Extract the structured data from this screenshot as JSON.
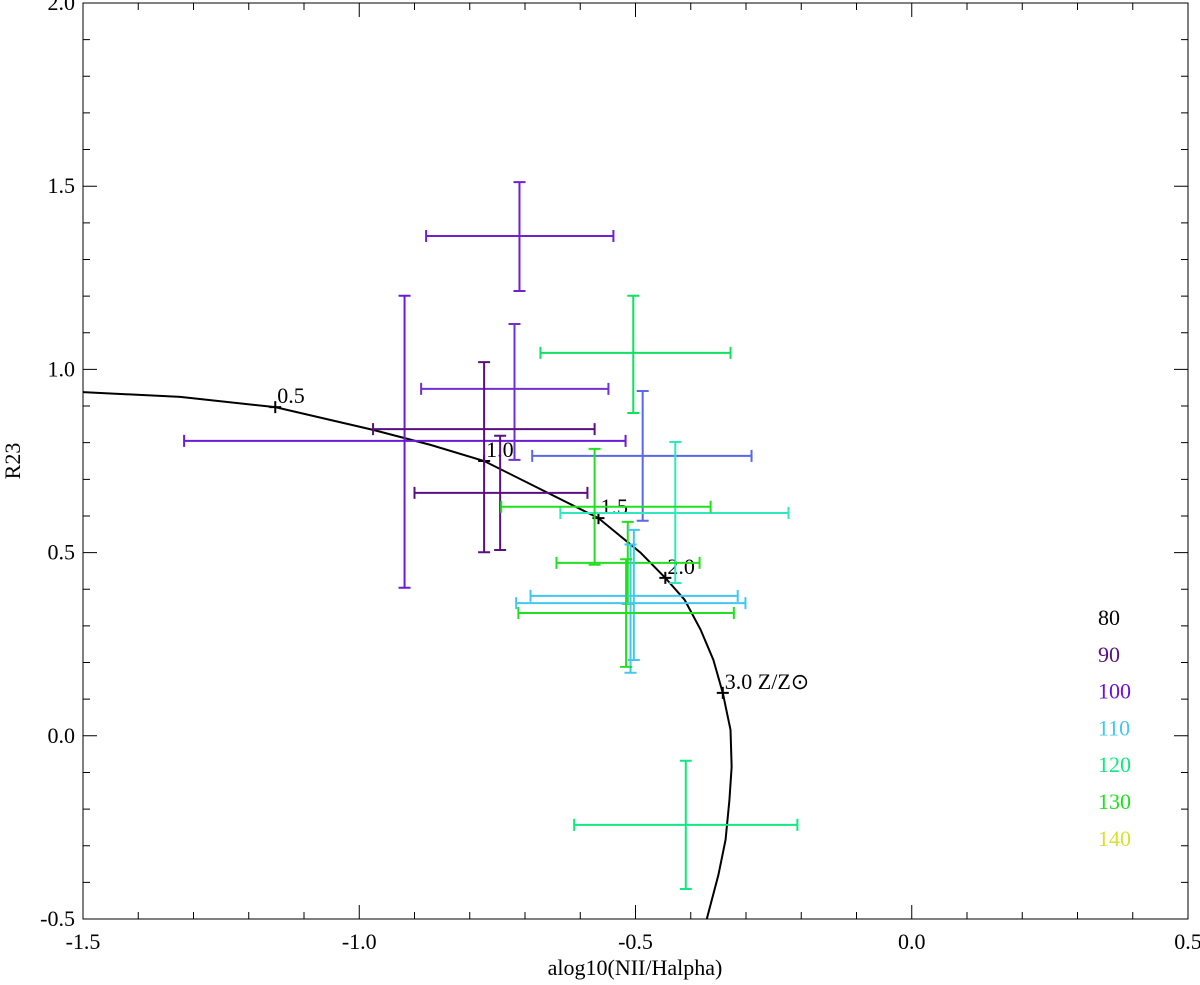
{
  "chart_data": {
    "type": "scatter",
    "x_label": "alog10(NII/Halpha)",
    "y_label": "R23",
    "xlim": [
      -1.5,
      0.5
    ],
    "ylim": [
      -0.5,
      2.0
    ],
    "xticks": [
      {
        "value": -1.5,
        "label": "-1.5"
      },
      {
        "value": -1.0,
        "label": "-1.0"
      },
      {
        "value": -0.5,
        "label": "-0.5"
      },
      {
        "value": 0.0,
        "label": "0.0"
      },
      {
        "value": 0.5,
        "label": "0.5"
      }
    ],
    "yticks": [
      {
        "value": -0.5,
        "label": "-0.5"
      },
      {
        "value": 0.0,
        "label": "0.0"
      },
      {
        "value": 0.5,
        "label": "0.5"
      },
      {
        "value": 1.0,
        "label": "1.0"
      },
      {
        "value": 1.5,
        "label": "1.5"
      },
      {
        "value": 2.0,
        "label": "2.0"
      }
    ],
    "xminorticks": [
      -1.4,
      -1.3,
      -1.2,
      -1.1,
      -0.9,
      -0.8,
      -0.7,
      -0.6,
      -0.4,
      -0.3,
      -0.2,
      -0.1,
      0.1,
      0.2,
      0.3,
      0.4
    ],
    "yminorticks": [
      -0.4,
      -0.3,
      -0.2,
      -0.1,
      0.1,
      0.2,
      0.3,
      0.4,
      0.6,
      0.7,
      0.8,
      0.9,
      1.1,
      1.2,
      1.3,
      1.4,
      1.6,
      1.7,
      1.8,
      1.9
    ],
    "curve": {
      "color": "#000000",
      "x": [
        -1.5,
        -1.324,
        -1.152,
        -0.975,
        -0.871,
        -0.774,
        -0.567,
        -0.491,
        -0.446,
        -0.411,
        -0.382,
        -0.359,
        -0.342,
        -0.328,
        -0.326,
        -0.33,
        -0.337,
        -0.35,
        -0.371
      ],
      "y": [
        0.938,
        0.925,
        0.897,
        0.835,
        0.794,
        0.75,
        0.594,
        0.5,
        0.431,
        0.371,
        0.289,
        0.207,
        0.117,
        0.016,
        -0.085,
        -0.175,
        -0.284,
        -0.38,
        -0.5
      ]
    },
    "curve_marks": [
      {
        "x": -1.152,
        "y": 0.897,
        "label": "0.5"
      },
      {
        "x": -0.774,
        "y": 0.75,
        "label": "1.0"
      },
      {
        "x": -0.567,
        "y": 0.594,
        "label": "1.5"
      },
      {
        "x": -0.446,
        "y": 0.431,
        "label": "2.0"
      },
      {
        "x": -0.342,
        "y": 0.117,
        "label": "3.0 Z/Z⊙"
      }
    ],
    "points": [
      {
        "x": -0.71,
        "xerr": [
          0.169,
          0.17
        ],
        "y": 1.364,
        "yerr": [
          0.15,
          0.147
        ],
        "color": "#7020d0"
      },
      {
        "x": -0.918,
        "xerr": [
          0.399,
          0.4
        ],
        "y": 0.805,
        "yerr": [
          0.401,
          0.396
        ],
        "color": "#6a1ad8"
      },
      {
        "x": -0.719,
        "xerr": [
          0.169,
          0.17
        ],
        "y": 0.947,
        "yerr": [
          0.194,
          0.177
        ],
        "color": "#7030d0"
      },
      {
        "x": -0.774,
        "xerr": [
          0.201,
          0.2
        ],
        "y": 0.837,
        "yerr": [
          0.336,
          0.183
        ],
        "color": "#5a1080"
      },
      {
        "x": -0.745,
        "xerr": [
          0.155,
          0.158
        ],
        "y": 0.663,
        "yerr": [
          0.156,
          0.156
        ],
        "color": "#5a1080"
      },
      {
        "x": -0.504,
        "xerr": [
          0.168,
          0.176
        ],
        "y": 1.045,
        "yerr": [
          0.164,
          0.156
        ],
        "color": "#10e060"
      },
      {
        "x": -0.487,
        "xerr": [
          0.2,
          0.197
        ],
        "y": 0.764,
        "yerr": [
          0.177,
          0.177
        ],
        "color": "#5868e8"
      },
      {
        "x": -0.428,
        "xerr": [
          0.208,
          0.205
        ],
        "y": 0.608,
        "yerr": [
          0.191,
          0.194
        ],
        "color": "#30e8c0"
      },
      {
        "x": -0.574,
        "xerr": [
          0.169,
          0.21
        ],
        "y": 0.625,
        "yerr": [
          0.158,
          0.158
        ],
        "color": "#20e020"
      },
      {
        "x": -0.514,
        "xerr": [
          0.129,
          0.13
        ],
        "y": 0.472,
        "yerr": [
          0.112,
          0.112
        ],
        "color": "#20e020"
      },
      {
        "x": -0.503,
        "xerr": [
          0.187,
          0.188
        ],
        "y": 0.382,
        "yerr": [
          0.175,
          0.18
        ],
        "color": "#40c8f0"
      },
      {
        "x": -0.509,
        "xerr": [
          0.207,
          0.208
        ],
        "y": 0.362,
        "yerr": [
          0.19,
          0.16
        ],
        "color": "#40c8f0"
      },
      {
        "x": -0.517,
        "xerr": [
          0.195,
          0.195
        ],
        "y": 0.335,
        "yerr": [
          0.147,
          0.147
        ],
        "color": "#20e020"
      },
      {
        "x": -0.409,
        "xerr": [
          0.202,
          0.202
        ],
        "y": -0.243,
        "yerr": [
          0.175,
          0.175
        ],
        "color": "#10e880"
      }
    ],
    "legend": [
      {
        "label": "80",
        "color": "#000000"
      },
      {
        "label": "90",
        "color": "#5a1080"
      },
      {
        "label": "100",
        "color": "#6a10e0"
      },
      {
        "label": "110",
        "color": "#40c8f0"
      },
      {
        "label": "120",
        "color": "#10e880"
      },
      {
        "label": "130",
        "color": "#20e020"
      },
      {
        "label": "140",
        "color": "#d8e030"
      }
    ]
  }
}
